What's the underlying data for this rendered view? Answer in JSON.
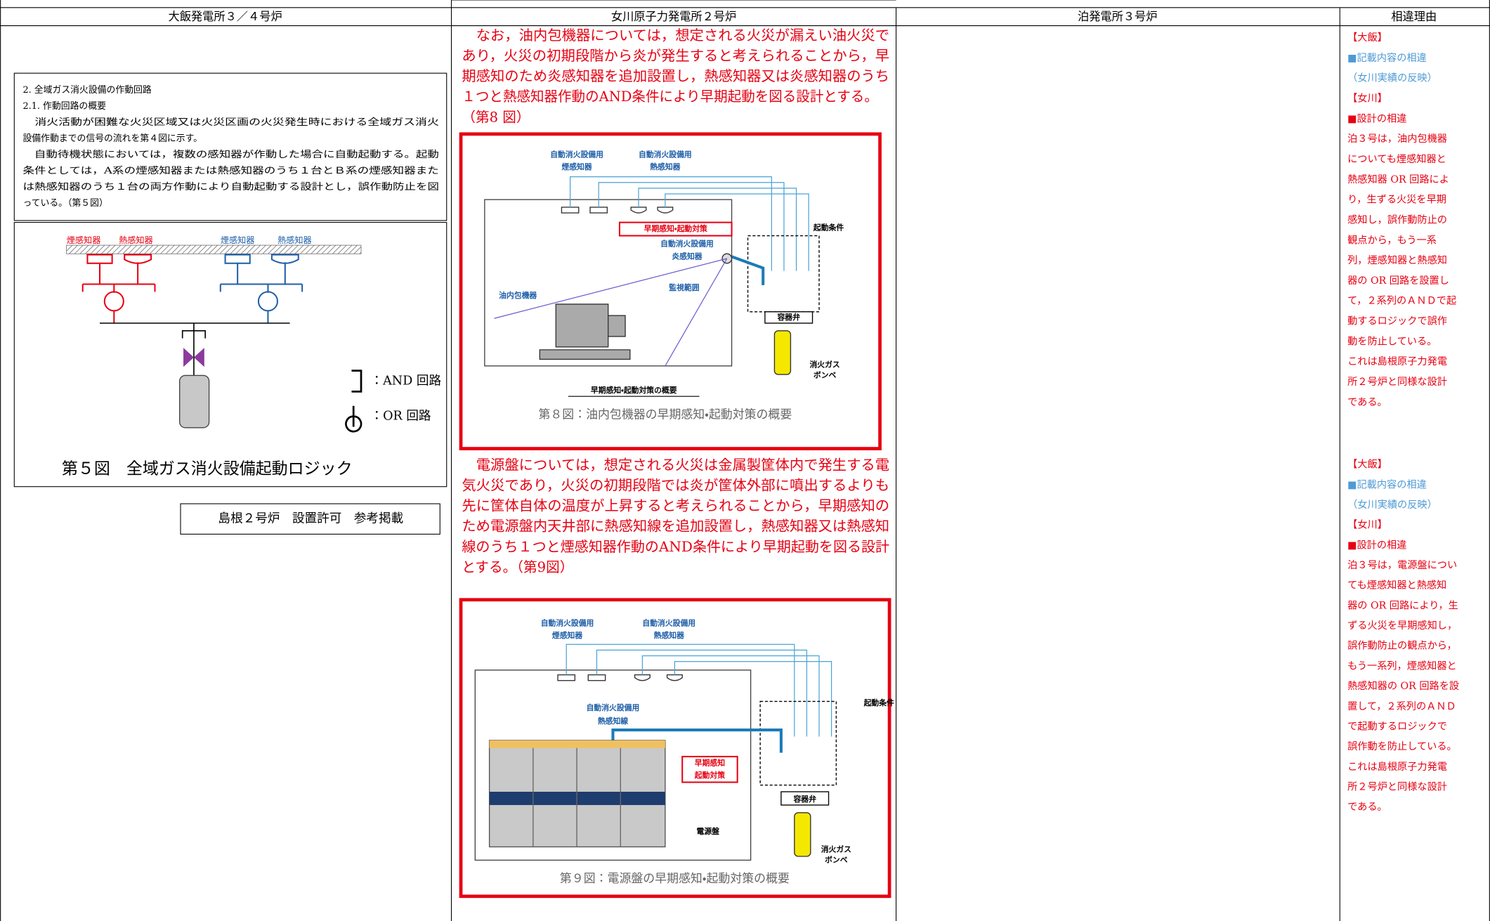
{
  "header": {
    "columns": [
      "大飯発電所３／４号炉",
      "女川原子力発電所２号炉",
      "泊発電所３号炉",
      "相違理由"
    ]
  },
  "ohi": {
    "section_lines": [
      "2. 全域ガス消火設備の作動回路",
      "2.1. 作動回路の概要",
      "　消火活動が困難な火災区域又は火災区画の火災発生時における全域ガス消火",
      "設備作動までの信号の流れを第４図に示す。",
      "　自動待機状態においては，複数の感知器が作動した場合に自動起動する。起動",
      "条件としては，A系の煙感知器または熱感知器のうち１台とＢ系の煙感知器また",
      "は熱感知器のうち１台の両方作動により自動起動する設計とし，誤作動防止を図",
      "っている。（第５図）"
    ],
    "figure": {
      "labels": [
        "煙感知器",
        "熱感知器",
        "煙感知器",
        "熱感知器"
      ],
      "legend": [
        "：AND 回路",
        "：OR 回路"
      ],
      "caption": "第５図　全域ガス消火設備起動ロジック"
    },
    "note": "島根２号炉　設置許可　参考掲載"
  },
  "onagawa": {
    "paragraph1": [
      "　なお，油内包機器については，想定される火災が漏えい油火災で",
      "あり，火災の初期段階から炎が発生すると考えられることから，早",
      "期感知のため炎感知器を追加設置し，熱感知器又は炎感知器のうち",
      "１つと熱感知器作動のAND条件により早期起動を図る設計とする。",
      "（第8 図）"
    ],
    "figure8": {
      "labels": [
        "自動消火設備用",
        "煙感知器",
        "自動消火設備用",
        "熱感知器",
        "早期感知・起動対策",
        "自動消火設備用",
        "炎感知器",
        "起動条件",
        "油内包機器",
        "監視範囲",
        "容器弁",
        "消火ガス",
        "ボンベ",
        "早期感知・起動対策の概要"
      ],
      "caption": "第８図：油内包機器の早期感知・起動対策の概要"
    },
    "paragraph2": [
      "　電源盤については，想定される火災は金属製筐体内で発生する電",
      "気火災であり，火災の初期段階では炎が筐体外部に噴出するよりも",
      "先に筐体自体の温度が上昇すると考えられることから，早期感知の",
      "ため電源盤内天井部に熱感知線を追加設置し，熱感知器又は熱感知",
      "線のうち１つと煙感知器作動のAND条件により早期起動を図る設計",
      "とする。（第9図）"
    ],
    "figure9": {
      "labels": [
        "自動消火設備用",
        "煙感知器",
        "自動消火設備用",
        "熱感知器",
        "自動消火設備用",
        "熱感知線",
        "起動条件",
        "早期感知",
        "起動対策",
        "容器弁",
        "電源盤",
        "消火ガス",
        "ボンベ"
      ],
      "caption": "第９図：電源盤の早期感知・起動対策の概要"
    }
  },
  "reasons": [
    [
      "【大飯】",
      "■記載内容の相違",
      "（女川実績の反映）",
      "【女川】",
      "■設計の相違",
      "泊３号は，油内包機器",
      "についても煙感知器と",
      "熱感知器 OR 回路によ",
      "り，生ずる火災を早期",
      "感知し，誤作動防止の",
      "観点から，もう一系",
      "列，煙感知器と熱感知",
      "器の OR 回路を設置し",
      "て，２系列のＡＮＤで起",
      "動するロジックで誤作",
      "動を防止している。",
      "これは島根原子力発電",
      "所２号炉と同様な設計",
      "である。"
    ],
    [
      "【大飯】",
      "■記載内容の相違",
      "（女川実績の反映）",
      "【女川】",
      "■設計の相違",
      "泊３号は，電源盤につい",
      "ても煙感知器と熱感知",
      "器の OR 回路により，生",
      "ずる火災を早期感知し，",
      "誤作動防止の観点から，",
      "もう一系列，煙感知器と",
      "熱感知器の OR 回路を設",
      "置して，２系列のＡＮＤ",
      "で起動するロジックで",
      "誤作動を防止している。",
      "これは島根原子力発電",
      "所２号炉と同様な設計",
      "である。"
    ]
  ]
}
